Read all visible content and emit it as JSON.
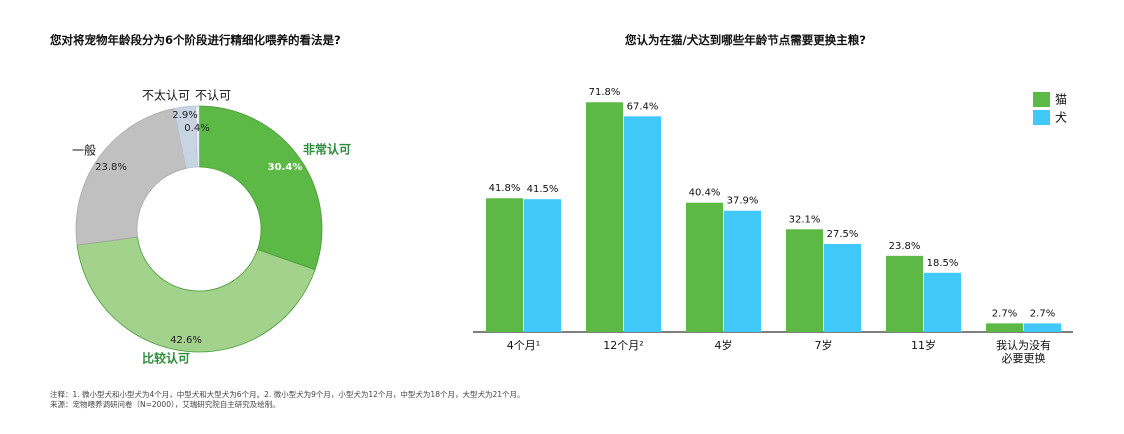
{
  "notes": {
    "line1": "注释：1. 微小型犬和小型犬为4个月，中型犬和大型犬为6个月。2. 微小型犬为9个月，小型犬为12个月，中型犬为18个月，大型犬为21个月。",
    "line2": "来源：宠物喂养调研问卷（N=2000），艾瑞研究院自主研究及绘制。"
  },
  "colors": {
    "cat": "#5cb946",
    "dog": "#40c8f8",
    "strong_agree": "#5cb946",
    "agree": "#a2d28c",
    "neutral": "#c0c0c0",
    "disagree": "#c9d4e3",
    "strong_disagree": "#ffffff",
    "label_green": "#2e8b3c"
  },
  "chart_data": [
    {
      "type": "pie",
      "variant": "donut",
      "title": "您对将宠物年龄段分为6个阶段进行精细化喂养的看法是?",
      "labels": [
        "非常认可",
        "比较认可",
        "一般",
        "不太认可",
        "不认可"
      ],
      "values": [
        30.4,
        42.6,
        23.8,
        2.9,
        0.4
      ],
      "value_labels": [
        "30.4%",
        "42.6%",
        "23.8%",
        "2.9%",
        "0.4%"
      ],
      "colors": [
        "#5cb946",
        "#a2d28c",
        "#c0c0c0",
        "#c9d4e3",
        "#ffffff"
      ]
    },
    {
      "type": "bar",
      "title": "您认为在猫/犬达到哪些年龄节点需要更换主粮?",
      "categories": [
        "4个月¹",
        "12个月²",
        "4岁",
        "7岁",
        "11岁",
        "我认为没有必要更换"
      ],
      "category_lines": [
        [
          "4个月¹"
        ],
        [
          "12个月²"
        ],
        [
          "4岁"
        ],
        [
          "7岁"
        ],
        [
          "11岁"
        ],
        [
          "我认为没有",
          "必要更换"
        ]
      ],
      "series": [
        {
          "name": "猫",
          "values": [
            41.8,
            71.8,
            40.4,
            32.1,
            23.8,
            2.7
          ],
          "labels": [
            "41.8%",
            "71.8%",
            "40.4%",
            "32.1%",
            "23.8%",
            "2.7%"
          ],
          "color": "#5cb946"
        },
        {
          "name": "犬",
          "values": [
            41.5,
            67.4,
            37.9,
            27.5,
            18.5,
            2.7
          ],
          "labels": [
            "41.5%",
            "67.4%",
            "37.9%",
            "27.5%",
            "18.5%",
            "2.7%"
          ],
          "color": "#40c8f8"
        }
      ],
      "ylim": [
        0,
        80
      ],
      "grid": false,
      "legend": "top-right"
    }
  ]
}
